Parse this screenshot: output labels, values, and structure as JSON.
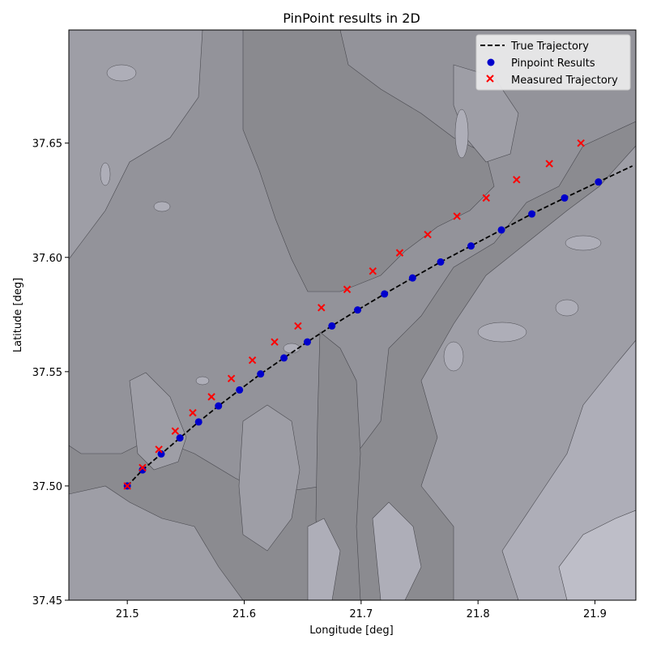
{
  "chart_data": {
    "type": "line",
    "title": "PinPoint results in 2D",
    "xlabel": "Longitude [deg]",
    "ylabel": "Latitude [deg]",
    "xlim": [
      21.45,
      21.935
    ],
    "ylim": [
      37.45,
      37.6995
    ],
    "xticks": [
      21.5,
      21.6,
      21.7,
      21.8,
      21.9
    ],
    "yticks": [
      37.45,
      37.5,
      37.55,
      37.6,
      37.65
    ],
    "xtick_labels": [
      "21.5",
      "21.6",
      "21.7",
      "21.8",
      "21.9"
    ],
    "ytick_labels": [
      "37.45",
      "37.50",
      "37.55",
      "37.60",
      "37.65"
    ],
    "grid": false,
    "legend_position": "top-right",
    "series": [
      {
        "name": "True Trajectory",
        "style": "dashed-line",
        "color": "#000000",
        "x": [
          21.5,
          21.513,
          21.529,
          21.545,
          21.561,
          21.578,
          21.596,
          21.614,
          21.634,
          21.654,
          21.675,
          21.697,
          21.72,
          21.744,
          21.768,
          21.794,
          21.82,
          21.846,
          21.874,
          21.903,
          21.932
        ],
        "y": [
          37.5,
          37.507,
          37.514,
          37.521,
          37.528,
          37.535,
          37.542,
          37.549,
          37.556,
          37.563,
          37.57,
          37.577,
          37.584,
          37.591,
          37.598,
          37.605,
          37.612,
          37.619,
          37.626,
          37.633,
          37.64
        ]
      },
      {
        "name": "Pinpoint Results",
        "style": "circle-marker",
        "color": "#0000cc",
        "x": [
          21.5,
          21.513,
          21.529,
          21.545,
          21.561,
          21.578,
          21.596,
          21.614,
          21.634,
          21.654,
          21.675,
          21.697,
          21.72,
          21.744,
          21.768,
          21.794,
          21.82,
          21.846,
          21.874,
          21.903
        ],
        "y": [
          37.5,
          37.507,
          37.514,
          37.521,
          37.528,
          37.535,
          37.542,
          37.549,
          37.556,
          37.563,
          37.57,
          37.577,
          37.584,
          37.591,
          37.598,
          37.605,
          37.612,
          37.619,
          37.626,
          37.633
        ]
      },
      {
        "name": "Measured Trajectory",
        "style": "x-marker",
        "color": "#ff0000",
        "x": [
          21.5,
          21.513,
          21.527,
          21.541,
          21.556,
          21.572,
          21.589,
          21.607,
          21.626,
          21.646,
          21.666,
          21.688,
          21.71,
          21.733,
          21.757,
          21.782,
          21.807,
          21.833,
          21.861,
          21.888
        ],
        "y": [
          37.5,
          37.508,
          37.516,
          37.524,
          37.532,
          37.539,
          37.547,
          37.555,
          37.563,
          37.57,
          37.578,
          37.586,
          37.594,
          37.602,
          37.61,
          37.618,
          37.626,
          37.634,
          37.641,
          37.65
        ]
      }
    ],
    "background": {
      "type": "terrain-contour",
      "colors": [
        "#8a8a8f",
        "#93939a",
        "#9e9ea6",
        "#aeaeb8",
        "#bebec8"
      ]
    }
  }
}
